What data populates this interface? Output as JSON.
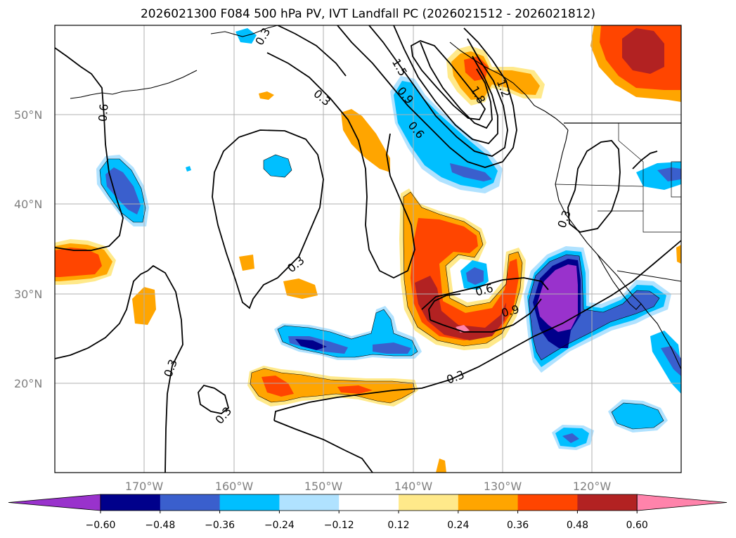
{
  "title": "2026021300 F084 500 hPa PV, IVT Landfall PC (2026021512 - 2026021812)",
  "latitude_labels": [
    "50°N",
    "40°N",
    "30°N",
    "20°N"
  ],
  "longitude_labels": [
    "170°W",
    "160°W",
    "150°W",
    "140°W",
    "130°W",
    "120°W"
  ],
  "contour_labels": [
    "0.6",
    "0.3",
    "0.3",
    "0.3",
    "0.3",
    "0.3",
    "0.6",
    "0.9",
    "0.3",
    "1.5",
    "0.9",
    "0.6",
    "1.8",
    "1.2",
    "0.3"
  ],
  "colorbar": {
    "tick_labels": [
      "−0.60",
      "−0.48",
      "−0.36",
      "−0.24",
      "−0.12",
      "0.12",
      "0.24",
      "0.36",
      "0.48",
      "0.60"
    ],
    "colors": [
      "#9932cc",
      "#00008b",
      "#3a5fcd",
      "#00bfff",
      "#b0e2ff",
      "#ffffff",
      "#ffe98a",
      "#ffa500",
      "#ff4500",
      "#b22222",
      "#ff83ab"
    ]
  },
  "colors": {
    "neg_strong": "#9932cc",
    "neg_dark": "#00008b",
    "neg_mid": "#3a5fcd",
    "neg_light": "#00bfff",
    "neg_pale": "#b0e2ff",
    "pos_pale": "#ffe98a",
    "pos_light": "#ffa500",
    "pos_mid": "#ff4500",
    "pos_dark": "#b22222",
    "pos_strong": "#ff83ab"
  }
}
